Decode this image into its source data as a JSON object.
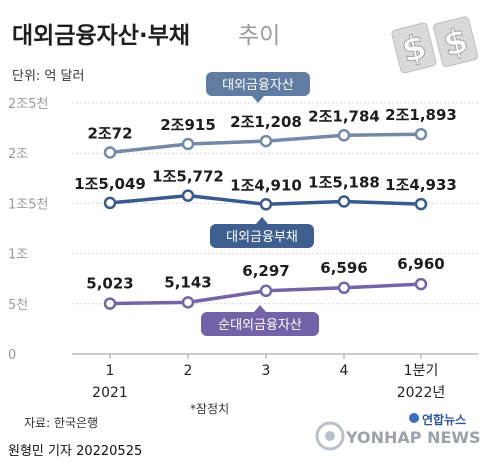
{
  "title": "대외금융자산·부채",
  "title_suffix": "추이",
  "unit": "단위: 억 달러",
  "footer": {
    "source": "자료: 한국은행",
    "note": "*잠정치",
    "byline": "원형민 기자  20220525",
    "agency": "연합뉴스",
    "agency_en": "YONHAP NEWS"
  },
  "colors": {
    "assets": "#7289a8",
    "liabilities": "#385a8c",
    "net": "#7563a8",
    "label_assets": "#617ca2",
    "label_liabilities": "#3f5f91",
    "label_net": "#7462a8",
    "grid": "#cccccc"
  },
  "icons": [
    "dollar-sign-icon",
    "yonhap-logo-icon"
  ],
  "chart_data": {
    "type": "line",
    "categories": [
      "1",
      "2",
      "3",
      "4",
      "1분기"
    ],
    "category_group_labels": [
      "2021",
      "",
      "",
      "",
      "2022년"
    ],
    "yticks": [
      "0",
      "5천",
      "1조",
      "1조5천",
      "2조",
      "2조5천"
    ],
    "ylim": [
      0,
      25000
    ],
    "grid": true,
    "series": [
      {
        "name": "대외금융자산",
        "key": "assets",
        "values": [
          20072,
          20915,
          21208,
          21784,
          21893
        ],
        "labels": [
          "2조72",
          "2조915",
          "2조1,208",
          "2조1,784",
          "2조1,893"
        ]
      },
      {
        "name": "대외금융부채",
        "key": "liabilities",
        "values": [
          15049,
          15772,
          14910,
          15188,
          14933
        ],
        "labels": [
          "1조5,049",
          "1조5,772",
          "1조4,910",
          "1조5,188",
          "1조4,933"
        ]
      },
      {
        "name": "순대외금융자산",
        "key": "net",
        "values": [
          5023,
          5143,
          6297,
          6596,
          6960
        ],
        "labels": [
          "5,023",
          "5,143",
          "6,297",
          "6,596",
          "6,960"
        ]
      }
    ]
  }
}
